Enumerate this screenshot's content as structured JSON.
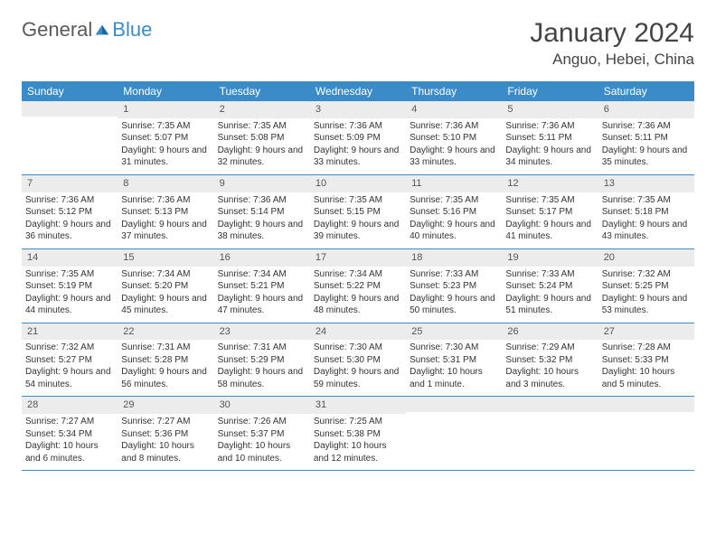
{
  "header": {
    "logo_general": "General",
    "logo_blue": "Blue",
    "month_title": "January 2024",
    "location": "Anguo, Hebei, China"
  },
  "colors": {
    "header_bg": "#3b8bc9",
    "header_text": "#ffffff",
    "daynum_bg": "#ececec",
    "border": "#3b8bc9",
    "text": "#333333"
  },
  "weekdays": [
    "Sunday",
    "Monday",
    "Tuesday",
    "Wednesday",
    "Thursday",
    "Friday",
    "Saturday"
  ],
  "weeks": [
    [
      {
        "day": "",
        "sunrise": "",
        "sunset": "",
        "daylight": ""
      },
      {
        "day": "1",
        "sunrise": "Sunrise: 7:35 AM",
        "sunset": "Sunset: 5:07 PM",
        "daylight": "Daylight: 9 hours and 31 minutes."
      },
      {
        "day": "2",
        "sunrise": "Sunrise: 7:35 AM",
        "sunset": "Sunset: 5:08 PM",
        "daylight": "Daylight: 9 hours and 32 minutes."
      },
      {
        "day": "3",
        "sunrise": "Sunrise: 7:36 AM",
        "sunset": "Sunset: 5:09 PM",
        "daylight": "Daylight: 9 hours and 33 minutes."
      },
      {
        "day": "4",
        "sunrise": "Sunrise: 7:36 AM",
        "sunset": "Sunset: 5:10 PM",
        "daylight": "Daylight: 9 hours and 33 minutes."
      },
      {
        "day": "5",
        "sunrise": "Sunrise: 7:36 AM",
        "sunset": "Sunset: 5:11 PM",
        "daylight": "Daylight: 9 hours and 34 minutes."
      },
      {
        "day": "6",
        "sunrise": "Sunrise: 7:36 AM",
        "sunset": "Sunset: 5:11 PM",
        "daylight": "Daylight: 9 hours and 35 minutes."
      }
    ],
    [
      {
        "day": "7",
        "sunrise": "Sunrise: 7:36 AM",
        "sunset": "Sunset: 5:12 PM",
        "daylight": "Daylight: 9 hours and 36 minutes."
      },
      {
        "day": "8",
        "sunrise": "Sunrise: 7:36 AM",
        "sunset": "Sunset: 5:13 PM",
        "daylight": "Daylight: 9 hours and 37 minutes."
      },
      {
        "day": "9",
        "sunrise": "Sunrise: 7:36 AM",
        "sunset": "Sunset: 5:14 PM",
        "daylight": "Daylight: 9 hours and 38 minutes."
      },
      {
        "day": "10",
        "sunrise": "Sunrise: 7:35 AM",
        "sunset": "Sunset: 5:15 PM",
        "daylight": "Daylight: 9 hours and 39 minutes."
      },
      {
        "day": "11",
        "sunrise": "Sunrise: 7:35 AM",
        "sunset": "Sunset: 5:16 PM",
        "daylight": "Daylight: 9 hours and 40 minutes."
      },
      {
        "day": "12",
        "sunrise": "Sunrise: 7:35 AM",
        "sunset": "Sunset: 5:17 PM",
        "daylight": "Daylight: 9 hours and 41 minutes."
      },
      {
        "day": "13",
        "sunrise": "Sunrise: 7:35 AM",
        "sunset": "Sunset: 5:18 PM",
        "daylight": "Daylight: 9 hours and 43 minutes."
      }
    ],
    [
      {
        "day": "14",
        "sunrise": "Sunrise: 7:35 AM",
        "sunset": "Sunset: 5:19 PM",
        "daylight": "Daylight: 9 hours and 44 minutes."
      },
      {
        "day": "15",
        "sunrise": "Sunrise: 7:34 AM",
        "sunset": "Sunset: 5:20 PM",
        "daylight": "Daylight: 9 hours and 45 minutes."
      },
      {
        "day": "16",
        "sunrise": "Sunrise: 7:34 AM",
        "sunset": "Sunset: 5:21 PM",
        "daylight": "Daylight: 9 hours and 47 minutes."
      },
      {
        "day": "17",
        "sunrise": "Sunrise: 7:34 AM",
        "sunset": "Sunset: 5:22 PM",
        "daylight": "Daylight: 9 hours and 48 minutes."
      },
      {
        "day": "18",
        "sunrise": "Sunrise: 7:33 AM",
        "sunset": "Sunset: 5:23 PM",
        "daylight": "Daylight: 9 hours and 50 minutes."
      },
      {
        "day": "19",
        "sunrise": "Sunrise: 7:33 AM",
        "sunset": "Sunset: 5:24 PM",
        "daylight": "Daylight: 9 hours and 51 minutes."
      },
      {
        "day": "20",
        "sunrise": "Sunrise: 7:32 AM",
        "sunset": "Sunset: 5:25 PM",
        "daylight": "Daylight: 9 hours and 53 minutes."
      }
    ],
    [
      {
        "day": "21",
        "sunrise": "Sunrise: 7:32 AM",
        "sunset": "Sunset: 5:27 PM",
        "daylight": "Daylight: 9 hours and 54 minutes."
      },
      {
        "day": "22",
        "sunrise": "Sunrise: 7:31 AM",
        "sunset": "Sunset: 5:28 PM",
        "daylight": "Daylight: 9 hours and 56 minutes."
      },
      {
        "day": "23",
        "sunrise": "Sunrise: 7:31 AM",
        "sunset": "Sunset: 5:29 PM",
        "daylight": "Daylight: 9 hours and 58 minutes."
      },
      {
        "day": "24",
        "sunrise": "Sunrise: 7:30 AM",
        "sunset": "Sunset: 5:30 PM",
        "daylight": "Daylight: 9 hours and 59 minutes."
      },
      {
        "day": "25",
        "sunrise": "Sunrise: 7:30 AM",
        "sunset": "Sunset: 5:31 PM",
        "daylight": "Daylight: 10 hours and 1 minute."
      },
      {
        "day": "26",
        "sunrise": "Sunrise: 7:29 AM",
        "sunset": "Sunset: 5:32 PM",
        "daylight": "Daylight: 10 hours and 3 minutes."
      },
      {
        "day": "27",
        "sunrise": "Sunrise: 7:28 AM",
        "sunset": "Sunset: 5:33 PM",
        "daylight": "Daylight: 10 hours and 5 minutes."
      }
    ],
    [
      {
        "day": "28",
        "sunrise": "Sunrise: 7:27 AM",
        "sunset": "Sunset: 5:34 PM",
        "daylight": "Daylight: 10 hours and 6 minutes."
      },
      {
        "day": "29",
        "sunrise": "Sunrise: 7:27 AM",
        "sunset": "Sunset: 5:36 PM",
        "daylight": "Daylight: 10 hours and 8 minutes."
      },
      {
        "day": "30",
        "sunrise": "Sunrise: 7:26 AM",
        "sunset": "Sunset: 5:37 PM",
        "daylight": "Daylight: 10 hours and 10 minutes."
      },
      {
        "day": "31",
        "sunrise": "Sunrise: 7:25 AM",
        "sunset": "Sunset: 5:38 PM",
        "daylight": "Daylight: 10 hours and 12 minutes."
      },
      {
        "day": "",
        "sunrise": "",
        "sunset": "",
        "daylight": ""
      },
      {
        "day": "",
        "sunrise": "",
        "sunset": "",
        "daylight": ""
      },
      {
        "day": "",
        "sunrise": "",
        "sunset": "",
        "daylight": ""
      }
    ]
  ]
}
